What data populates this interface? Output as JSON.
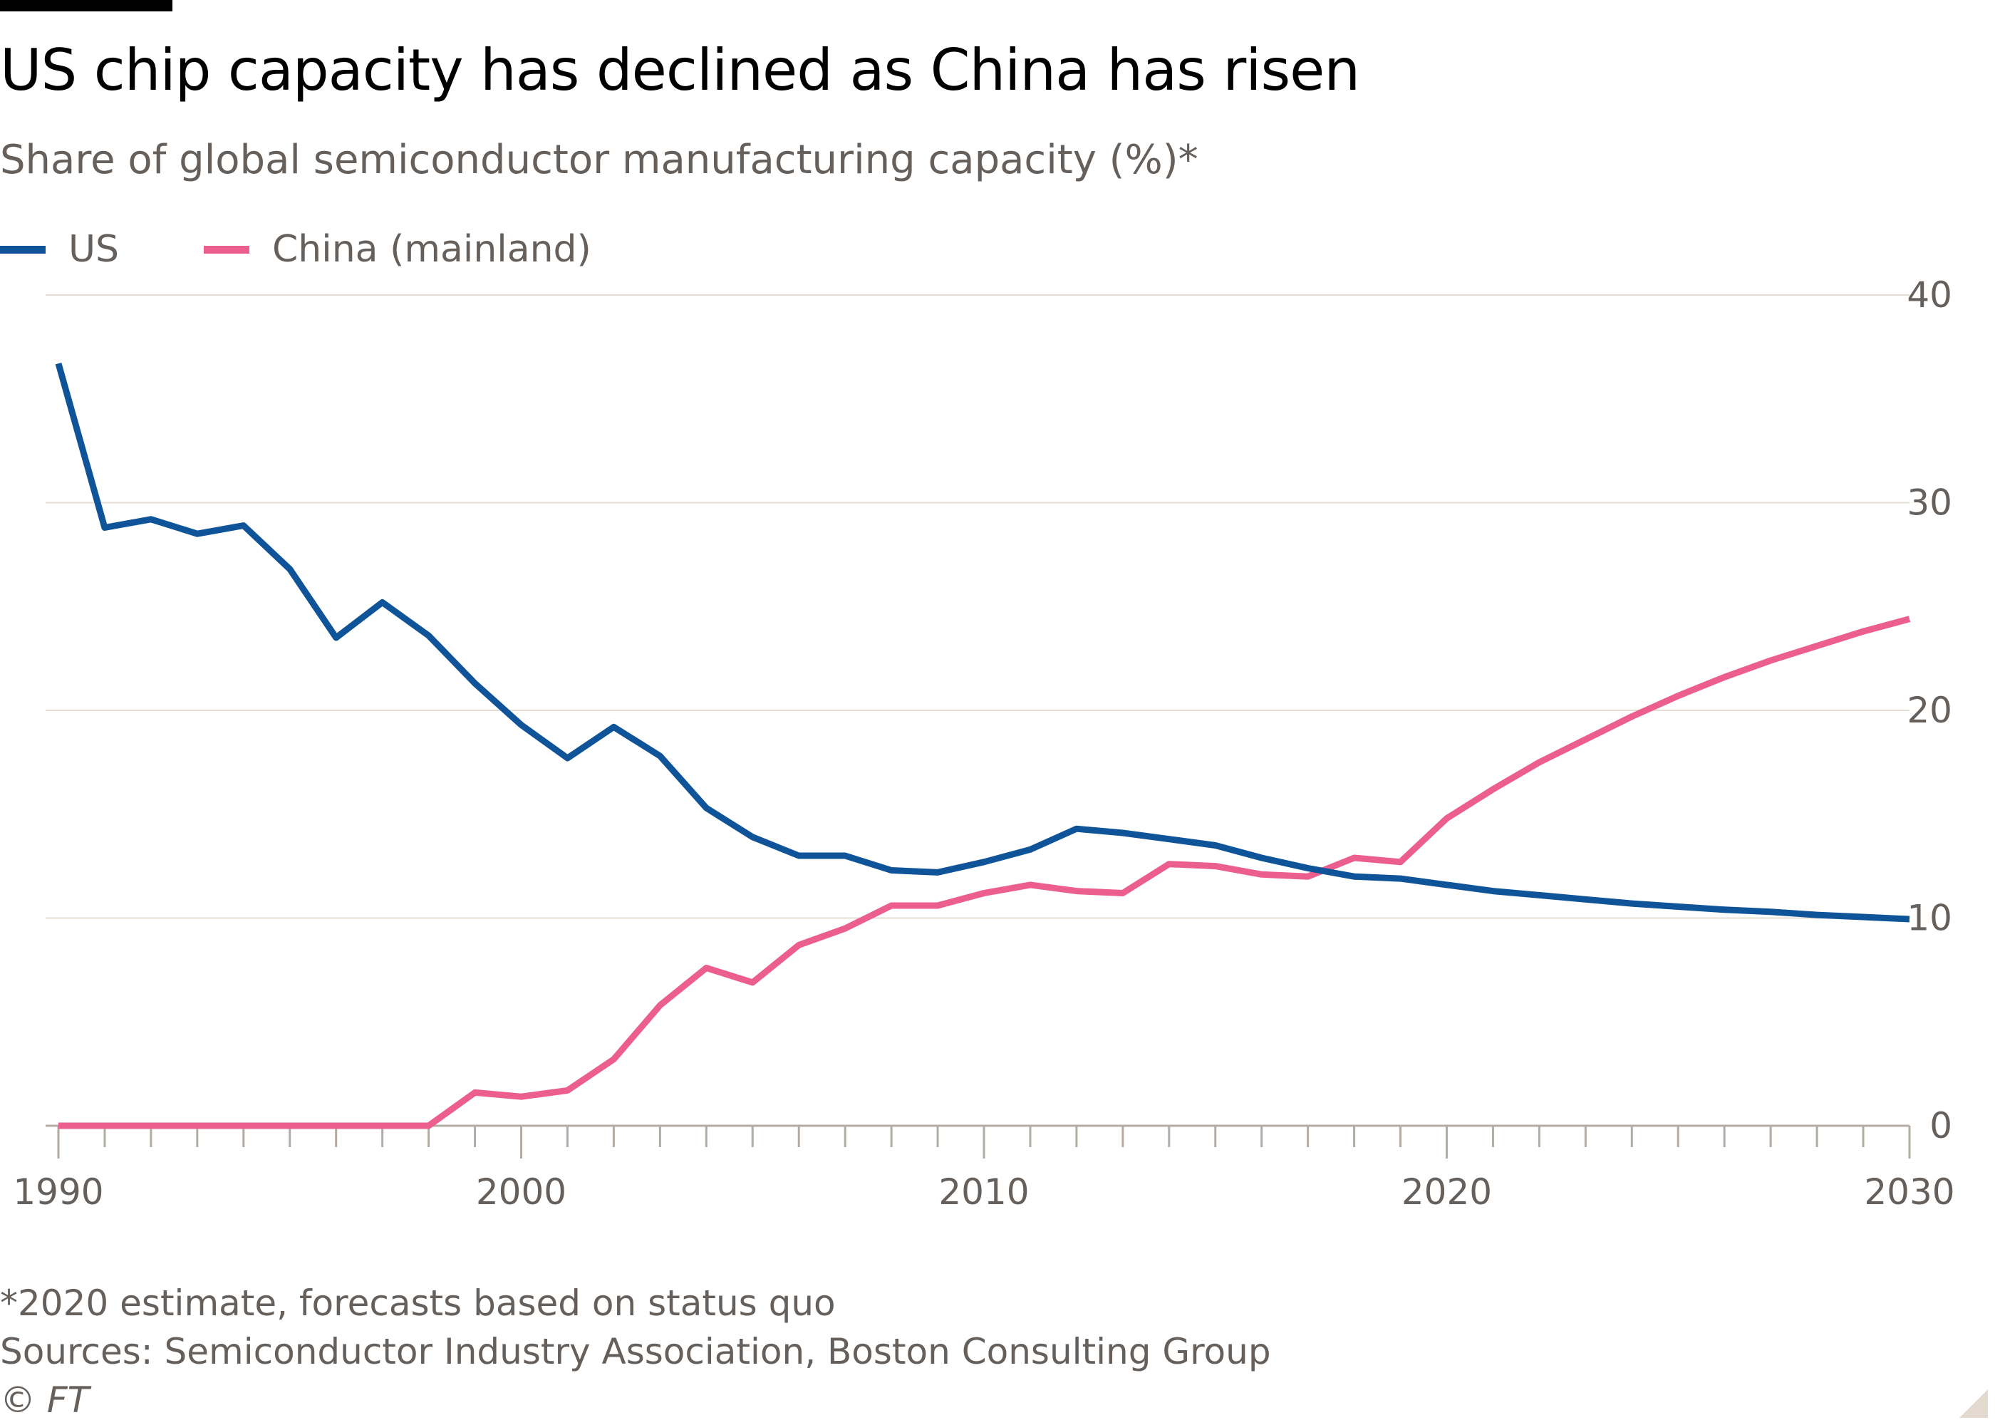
{
  "header": {
    "title": "US chip capacity has declined as China has risen",
    "subtitle": "Share of global semiconductor manufacturing capacity (%)*"
  },
  "legend": [
    {
      "label": "US",
      "color": "#0f5499"
    },
    {
      "label": "China (mainland)",
      "color": "#eb5e8d"
    }
  ],
  "footer": {
    "note": "*2020 estimate, forecasts based on status quo",
    "source": "Sources: Semiconductor Industry Association, Boston Consulting Group",
    "credit": "© FT"
  },
  "chart_data": {
    "type": "line",
    "title": "US chip capacity has declined as China has risen",
    "subtitle": "Share of global semiconductor manufacturing capacity (%)*",
    "xlabel": "",
    "ylabel": "",
    "xlim": [
      1990,
      2030
    ],
    "ylim": [
      0,
      40
    ],
    "x_ticks": [
      1990,
      2000,
      2010,
      2020,
      2030
    ],
    "y_ticks": [
      0,
      10,
      20,
      30,
      40
    ],
    "y_axis_side": "right",
    "grid": "horizontal",
    "legend_position": "top-left",
    "x": [
      1990,
      1991,
      1992,
      1993,
      1994,
      1995,
      1996,
      1997,
      1998,
      1999,
      2000,
      2001,
      2002,
      2003,
      2004,
      2005,
      2006,
      2007,
      2008,
      2009,
      2010,
      2011,
      2012,
      2013,
      2014,
      2015,
      2016,
      2017,
      2018,
      2019,
      2020,
      2021,
      2022,
      2023,
      2024,
      2025,
      2026,
      2027,
      2028,
      2029,
      2030
    ],
    "series": [
      {
        "name": "US",
        "color": "#0f5499",
        "values": [
          36.7,
          28.8,
          29.2,
          28.5,
          28.9,
          26.8,
          23.5,
          25.2,
          23.6,
          21.3,
          19.3,
          17.7,
          19.2,
          17.8,
          15.3,
          13.9,
          13.0,
          13.0,
          12.3,
          12.2,
          12.7,
          13.3,
          14.3,
          14.1,
          13.8,
          13.5,
          12.9,
          12.4,
          12.0,
          11.9,
          11.6,
          11.3,
          11.1,
          10.9,
          10.7,
          10.55,
          10.4,
          10.3,
          10.15,
          10.05,
          9.95
        ]
      },
      {
        "name": "China (mainland)",
        "color": "#eb5e8d",
        "values": [
          0,
          0,
          0,
          0,
          0,
          0,
          0,
          0,
          0,
          1.6,
          1.4,
          1.7,
          3.2,
          5.8,
          7.6,
          6.9,
          8.7,
          9.5,
          10.6,
          10.6,
          11.2,
          11.6,
          11.3,
          11.2,
          12.6,
          12.5,
          12.1,
          12.0,
          12.9,
          12.7,
          14.8,
          16.2,
          17.5,
          18.6,
          19.7,
          20.7,
          21.6,
          22.4,
          23.1,
          23.8,
          24.4
        ]
      }
    ]
  }
}
